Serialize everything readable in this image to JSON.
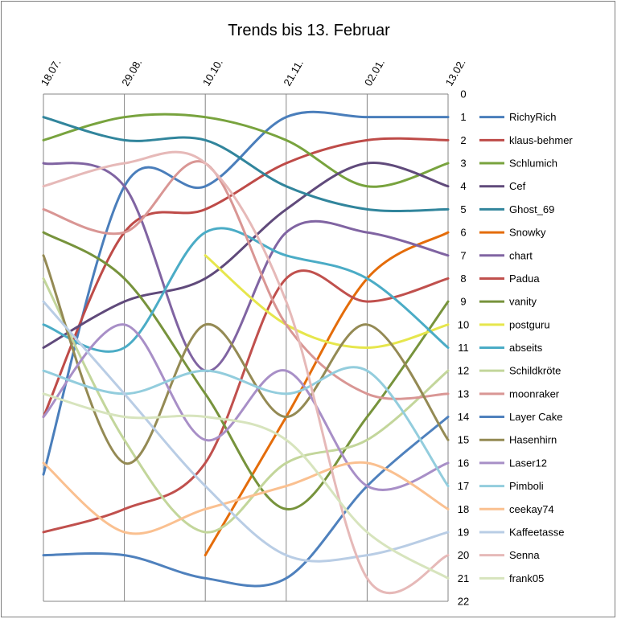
{
  "chart_data": {
    "type": "line",
    "title": "Trends bis 13. Februar",
    "x": [
      "18.07.",
      "29.08.",
      "10.10.",
      "21.11.",
      "02.01.",
      "13.02."
    ],
    "y_ticks": [
      "0",
      "1",
      "2",
      "3",
      "4",
      "5",
      "6",
      "7",
      "8",
      "9",
      "10",
      "11",
      "12",
      "13",
      "14",
      "15",
      "16",
      "17",
      "18",
      "19",
      "20",
      "21",
      "22"
    ],
    "ylim": [
      22,
      0
    ],
    "y_reversed": true,
    "grid": "vertical",
    "legend_position": "right",
    "series": [
      {
        "name": "RichyRich",
        "color": "#4a7ebb",
        "values": [
          16.5,
          4,
          4,
          1,
          1,
          1
        ]
      },
      {
        "name": "klaus-behmer",
        "color": "#be4b48",
        "values": [
          14,
          6,
          5,
          3,
          2,
          2
        ]
      },
      {
        "name": "Schlumich",
        "color": "#78a33e",
        "values": [
          2,
          1,
          1,
          2,
          4,
          3
        ]
      },
      {
        "name": "Cef",
        "color": "#604a7b",
        "values": [
          11,
          9,
          8,
          5,
          3,
          4
        ]
      },
      {
        "name": "Ghost_69",
        "color": "#31859c",
        "values": [
          1,
          2,
          2,
          4,
          5,
          5
        ]
      },
      {
        "name": "Snowky",
        "color": "#e46c0a",
        "values": [
          null,
          null,
          20,
          14,
          8,
          6
        ]
      },
      {
        "name": "chart",
        "color": "#8064a2",
        "values": [
          3,
          4,
          12,
          6,
          6,
          7
        ]
      },
      {
        "name": "Padua",
        "color": "#c0504d",
        "values": [
          19,
          18,
          16,
          8,
          9,
          8
        ]
      },
      {
        "name": "vanity",
        "color": "#77933c",
        "values": [
          6,
          8,
          13,
          18,
          14,
          9
        ]
      },
      {
        "name": "postguru",
        "color": "#e6e64c",
        "values": [
          null,
          null,
          7,
          10,
          11,
          10
        ]
      },
      {
        "name": "abseits",
        "color": "#4bacc6",
        "values": [
          10,
          11,
          6,
          7,
          8,
          11
        ]
      },
      {
        "name": "Schildkröte",
        "color": "#c3d69b",
        "values": [
          8,
          15,
          19,
          16,
          15,
          12
        ]
      },
      {
        "name": "moonraker",
        "color": "#d99694",
        "values": [
          5,
          6,
          3,
          10,
          13,
          13
        ]
      },
      {
        "name": "Layer Cake",
        "color": "#4f81bd",
        "values": [
          20,
          20,
          21,
          21,
          17,
          14
        ]
      },
      {
        "name": "Hasenhirn",
        "color": "#948a54",
        "values": [
          7,
          16,
          10,
          14,
          10,
          15
        ]
      },
      {
        "name": "Laser12",
        "color": "#a88fc7",
        "values": [
          14,
          10,
          15,
          12,
          17,
          16
        ]
      },
      {
        "name": "Pimboli",
        "color": "#93cddd",
        "values": [
          12,
          13,
          12,
          13,
          12,
          17
        ]
      },
      {
        "name": "ceekay74",
        "color": "#fac090",
        "values": [
          16,
          19,
          18,
          17,
          16,
          18
        ]
      },
      {
        "name": "Kaffeetasse",
        "color": "#b9cde5",
        "values": [
          9,
          13,
          17,
          20,
          20,
          19
        ]
      },
      {
        "name": "Senna",
        "color": "#e6b9b8",
        "values": [
          4,
          3,
          3,
          9,
          21,
          20
        ]
      },
      {
        "name": "frank05",
        "color": "#d7e4bd",
        "values": [
          13,
          14,
          14,
          15,
          19,
          21
        ]
      }
    ]
  }
}
